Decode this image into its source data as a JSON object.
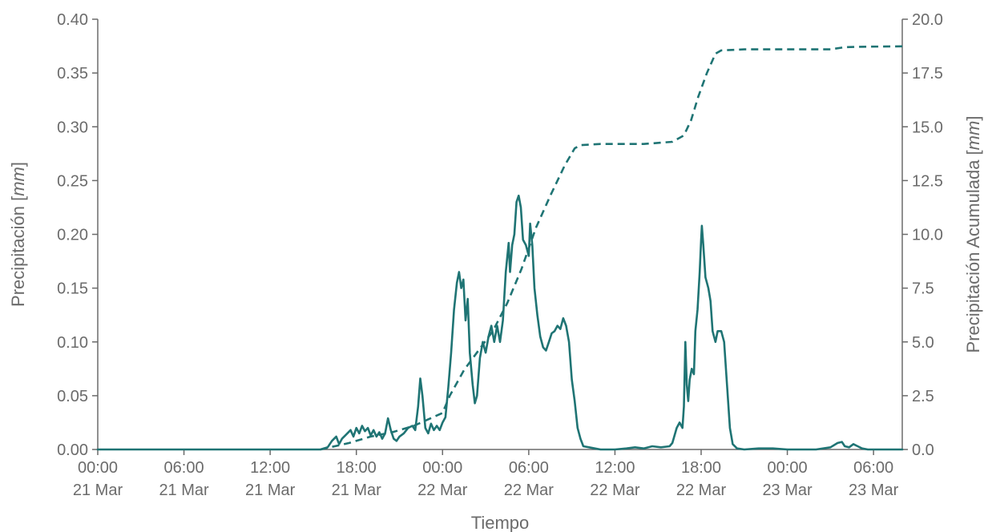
{
  "chart_data": {
    "type": "line",
    "xlabel": "Tiempo",
    "ylabel_left": {
      "text": "Precipitación ",
      "unit": "mm"
    },
    "ylabel_right": {
      "text": "Precipitación Acumulada ",
      "unit": "mm"
    },
    "x_range_hours": [
      0,
      56
    ],
    "ylim_left": [
      0,
      0.4
    ],
    "ylim_right": [
      0,
      20.0
    ],
    "grid": false,
    "colors": {
      "series": "#1f7474",
      "axis": "#6b6b6b",
      "text": "#6b6b6b"
    },
    "x_ticks": [
      {
        "time": "00:00",
        "date": "21 Mar",
        "hour": 0
      },
      {
        "time": "06:00",
        "date": "21 Mar",
        "hour": 6
      },
      {
        "time": "12:00",
        "date": "21 Mar",
        "hour": 12
      },
      {
        "time": "18:00",
        "date": "21 Mar",
        "hour": 18
      },
      {
        "time": "00:00",
        "date": "22 Mar",
        "hour": 24
      },
      {
        "time": "06:00",
        "date": "22 Mar",
        "hour": 30
      },
      {
        "time": "12:00",
        "date": "22 Mar",
        "hour": 36
      },
      {
        "time": "18:00",
        "date": "22 Mar",
        "hour": 42
      },
      {
        "time": "00:00",
        "date": "23 Mar",
        "hour": 48
      },
      {
        "time": "06:00",
        "date": "23 Mar",
        "hour": 54
      }
    ],
    "y_ticks_left": [
      "0.00",
      "0.05",
      "0.10",
      "0.15",
      "0.20",
      "0.25",
      "0.30",
      "0.35",
      "0.40"
    ],
    "y_ticks_right": [
      "0.0",
      "2.5",
      "5.0",
      "7.5",
      "10.0",
      "12.5",
      "15.0",
      "17.5",
      "20.0"
    ],
    "series": [
      {
        "name": "Precipitación",
        "axis": "left",
        "style": "solid",
        "points": [
          [
            0,
            0
          ],
          [
            15.5,
            0
          ],
          [
            16.0,
            0.002
          ],
          [
            16.3,
            0.008
          ],
          [
            16.6,
            0.012
          ],
          [
            16.8,
            0.005
          ],
          [
            17.0,
            0.01
          ],
          [
            17.3,
            0.014
          ],
          [
            17.6,
            0.018
          ],
          [
            17.8,
            0.012
          ],
          [
            18.0,
            0.02
          ],
          [
            18.2,
            0.015
          ],
          [
            18.4,
            0.022
          ],
          [
            18.6,
            0.017
          ],
          [
            18.8,
            0.02
          ],
          [
            19.0,
            0.013
          ],
          [
            19.2,
            0.018
          ],
          [
            19.4,
            0.012
          ],
          [
            19.6,
            0.016
          ],
          [
            19.8,
            0.01
          ],
          [
            20.0,
            0.015
          ],
          [
            20.2,
            0.029
          ],
          [
            20.4,
            0.018
          ],
          [
            20.6,
            0.01
          ],
          [
            20.8,
            0.008
          ],
          [
            21.0,
            0.012
          ],
          [
            21.3,
            0.015
          ],
          [
            21.6,
            0.02
          ],
          [
            21.9,
            0.022
          ],
          [
            22.1,
            0.018
          ],
          [
            22.3,
            0.04
          ],
          [
            22.45,
            0.066
          ],
          [
            22.6,
            0.05
          ],
          [
            22.8,
            0.02
          ],
          [
            23.0,
            0.015
          ],
          [
            23.2,
            0.024
          ],
          [
            23.4,
            0.018
          ],
          [
            23.6,
            0.022
          ],
          [
            23.8,
            0.018
          ],
          [
            24.0,
            0.025
          ],
          [
            24.2,
            0.03
          ],
          [
            24.4,
            0.058
          ],
          [
            24.6,
            0.09
          ],
          [
            24.8,
            0.13
          ],
          [
            25.0,
            0.155
          ],
          [
            25.15,
            0.165
          ],
          [
            25.3,
            0.15
          ],
          [
            25.45,
            0.158
          ],
          [
            25.6,
            0.12
          ],
          [
            25.75,
            0.14
          ],
          [
            25.9,
            0.09
          ],
          [
            26.1,
            0.06
          ],
          [
            26.25,
            0.043
          ],
          [
            26.4,
            0.05
          ],
          [
            26.6,
            0.085
          ],
          [
            26.8,
            0.1
          ],
          [
            27.0,
            0.09
          ],
          [
            27.2,
            0.105
          ],
          [
            27.4,
            0.115
          ],
          [
            27.6,
            0.1
          ],
          [
            27.8,
            0.115
          ],
          [
            28.0,
            0.1
          ],
          [
            28.2,
            0.12
          ],
          [
            28.4,
            0.165
          ],
          [
            28.6,
            0.192
          ],
          [
            28.7,
            0.165
          ],
          [
            28.85,
            0.19
          ],
          [
            29.0,
            0.2
          ],
          [
            29.15,
            0.23
          ],
          [
            29.3,
            0.236
          ],
          [
            29.45,
            0.225
          ],
          [
            29.6,
            0.195
          ],
          [
            29.8,
            0.19
          ],
          [
            30.0,
            0.18
          ],
          [
            30.1,
            0.21
          ],
          [
            30.25,
            0.19
          ],
          [
            30.4,
            0.15
          ],
          [
            30.6,
            0.125
          ],
          [
            30.8,
            0.105
          ],
          [
            31.0,
            0.095
          ],
          [
            31.2,
            0.092
          ],
          [
            31.4,
            0.1
          ],
          [
            31.6,
            0.108
          ],
          [
            31.8,
            0.11
          ],
          [
            32.0,
            0.115
          ],
          [
            32.2,
            0.112
          ],
          [
            32.4,
            0.122
          ],
          [
            32.6,
            0.115
          ],
          [
            32.8,
            0.1
          ],
          [
            33.0,
            0.065
          ],
          [
            33.2,
            0.045
          ],
          [
            33.4,
            0.02
          ],
          [
            33.6,
            0.01
          ],
          [
            33.8,
            0.003
          ],
          [
            34.2,
            0.002
          ],
          [
            34.6,
            0.001
          ],
          [
            35.0,
            0
          ],
          [
            36.0,
            0
          ],
          [
            36.8,
            0.001
          ],
          [
            37.4,
            0.002
          ],
          [
            38.0,
            0.001
          ],
          [
            38.6,
            0.003
          ],
          [
            39.2,
            0.002
          ],
          [
            39.8,
            0.003
          ],
          [
            40.0,
            0.006
          ],
          [
            40.3,
            0.02
          ],
          [
            40.5,
            0.025
          ],
          [
            40.7,
            0.02
          ],
          [
            40.8,
            0.04
          ],
          [
            40.9,
            0.1
          ],
          [
            41.0,
            0.06
          ],
          [
            41.1,
            0.045
          ],
          [
            41.2,
            0.065
          ],
          [
            41.35,
            0.075
          ],
          [
            41.5,
            0.07
          ],
          [
            41.6,
            0.11
          ],
          [
            41.75,
            0.13
          ],
          [
            41.9,
            0.165
          ],
          [
            42.0,
            0.195
          ],
          [
            42.05,
            0.208
          ],
          [
            42.15,
            0.19
          ],
          [
            42.3,
            0.16
          ],
          [
            42.5,
            0.15
          ],
          [
            42.65,
            0.138
          ],
          [
            42.8,
            0.11
          ],
          [
            43.0,
            0.1
          ],
          [
            43.15,
            0.11
          ],
          [
            43.4,
            0.11
          ],
          [
            43.6,
            0.1
          ],
          [
            43.8,
            0.06
          ],
          [
            44.0,
            0.02
          ],
          [
            44.2,
            0.005
          ],
          [
            44.5,
            0.001
          ],
          [
            45.0,
            0
          ],
          [
            46.0,
            0.001
          ],
          [
            47.0,
            0.001
          ],
          [
            48.0,
            0
          ],
          [
            50.0,
            0
          ],
          [
            51.0,
            0.002
          ],
          [
            51.5,
            0.006
          ],
          [
            51.8,
            0.007
          ],
          [
            52.0,
            0.003
          ],
          [
            52.3,
            0.002
          ],
          [
            52.6,
            0.005
          ],
          [
            52.9,
            0.003
          ],
          [
            53.2,
            0.001
          ],
          [
            53.6,
            0
          ],
          [
            56.0,
            0
          ]
        ]
      },
      {
        "name": "Precipitación Acumulada",
        "axis": "right",
        "style": "dashed",
        "points": [
          [
            15.5,
            0
          ],
          [
            17.5,
            0.3
          ],
          [
            19.0,
            0.6
          ],
          [
            20.5,
            0.8
          ],
          [
            22.0,
            1.1
          ],
          [
            24.0,
            1.7
          ],
          [
            24.5,
            2.5
          ],
          [
            25.5,
            3.7
          ],
          [
            26.5,
            4.6
          ],
          [
            27.5,
            5.5
          ],
          [
            28.5,
            6.8
          ],
          [
            29.5,
            8.4
          ],
          [
            30.5,
            10.3
          ],
          [
            31.5,
            11.8
          ],
          [
            32.5,
            13.2
          ],
          [
            33.2,
            14.0
          ],
          [
            33.6,
            14.15
          ],
          [
            35.0,
            14.2
          ],
          [
            38.0,
            14.2
          ],
          [
            40.0,
            14.3
          ],
          [
            40.8,
            14.6
          ],
          [
            41.3,
            15.3
          ],
          [
            41.8,
            16.4
          ],
          [
            42.4,
            17.5
          ],
          [
            43.0,
            18.4
          ],
          [
            43.4,
            18.55
          ],
          [
            45.0,
            18.6
          ],
          [
            48.0,
            18.6
          ],
          [
            51.0,
            18.6
          ],
          [
            52.0,
            18.7
          ],
          [
            53.0,
            18.72
          ],
          [
            56.0,
            18.74
          ]
        ]
      }
    ]
  }
}
